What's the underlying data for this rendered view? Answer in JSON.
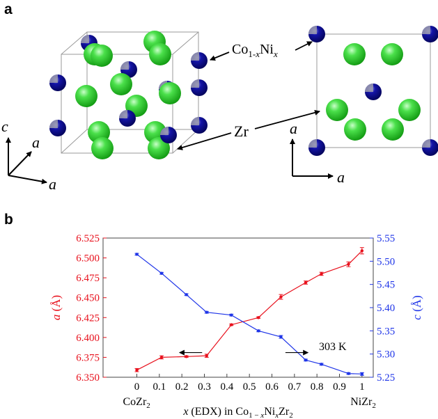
{
  "panel_a": {
    "label": "a",
    "annotations": {
      "co_ni": "Co",
      "co_ni_sub1": "1-",
      "co_ni_sub_x": "x",
      "co_ni_ni": "Ni",
      "co_ni_sub2": "x",
      "zr": "Zr"
    },
    "axes_left": {
      "c": "c",
      "a1": "a",
      "a2": "a"
    },
    "axes_right": {
      "a1": "a",
      "a2": "a"
    },
    "colors": {
      "zr": "#22cc22",
      "co_ni": "#0a0a8c",
      "box": "#888888"
    }
  },
  "panel_b": {
    "label": "b"
  },
  "chart_data": {
    "type": "line",
    "x_tick_labels": [
      "0",
      "0.1",
      "0.2",
      "0.3",
      "0.4",
      "0.5",
      "0.6",
      "0.7",
      "0.8",
      "0.9",
      "1"
    ],
    "xlim": [
      -0.15,
      1.05
    ],
    "end_labels": {
      "left": "CoZr",
      "left_sub": "2",
      "right": "NiZr",
      "right_sub": "2"
    },
    "xlabel": {
      "pre": "x",
      "mid": " (EDX) in Co",
      "sub1": "1 − ",
      "sub1x": "x",
      "ni": "Ni",
      "subx": "x",
      "zr": "Zr",
      "sub2": "2"
    },
    "y_left": {
      "label": "a",
      "unit": "(Å)",
      "lim": [
        6.35,
        6.525
      ],
      "ticks": [
        "6.350",
        "6.375",
        "6.400",
        "6.425",
        "6.450",
        "6.475",
        "6.500",
        "6.525"
      ],
      "color": "#e8101c"
    },
    "y_right": {
      "label": "c",
      "unit": "(Å)",
      "lim": [
        5.25,
        5.55
      ],
      "ticks": [
        "5.25",
        "5.30",
        "5.35",
        "5.40",
        "5.45",
        "5.50",
        "5.55"
      ],
      "color": "#1f35e8"
    },
    "annotation": "303 K",
    "series": [
      {
        "axis": "left",
        "color": "#e8101c",
        "x": [
          0,
          0.11,
          0.22,
          0.31,
          0.42,
          0.54,
          0.64,
          0.75,
          0.82,
          0.94,
          1.0
        ],
        "y": [
          6.359,
          6.375,
          6.376,
          6.377,
          6.416,
          6.425,
          6.451,
          6.469,
          6.48,
          6.492,
          6.509
        ],
        "err": [
          0.002,
          0.002,
          0.001,
          0.002,
          0.001,
          0.001,
          0.003,
          0.002,
          0.002,
          0.003,
          0.004
        ]
      },
      {
        "axis": "right",
        "color": "#1f35e8",
        "x": [
          0,
          0.11,
          0.22,
          0.31,
          0.42,
          0.54,
          0.64,
          0.75,
          0.82,
          0.94,
          1.0
        ],
        "y": [
          5.515,
          5.474,
          5.428,
          5.39,
          5.384,
          5.35,
          5.337,
          5.287,
          5.278,
          5.258,
          5.257
        ],
        "err": [
          0.002,
          0.002,
          0.002,
          0.002,
          0.002,
          0.002,
          0.003,
          0.002,
          0.002,
          0.002,
          0.003
        ]
      }
    ]
  }
}
